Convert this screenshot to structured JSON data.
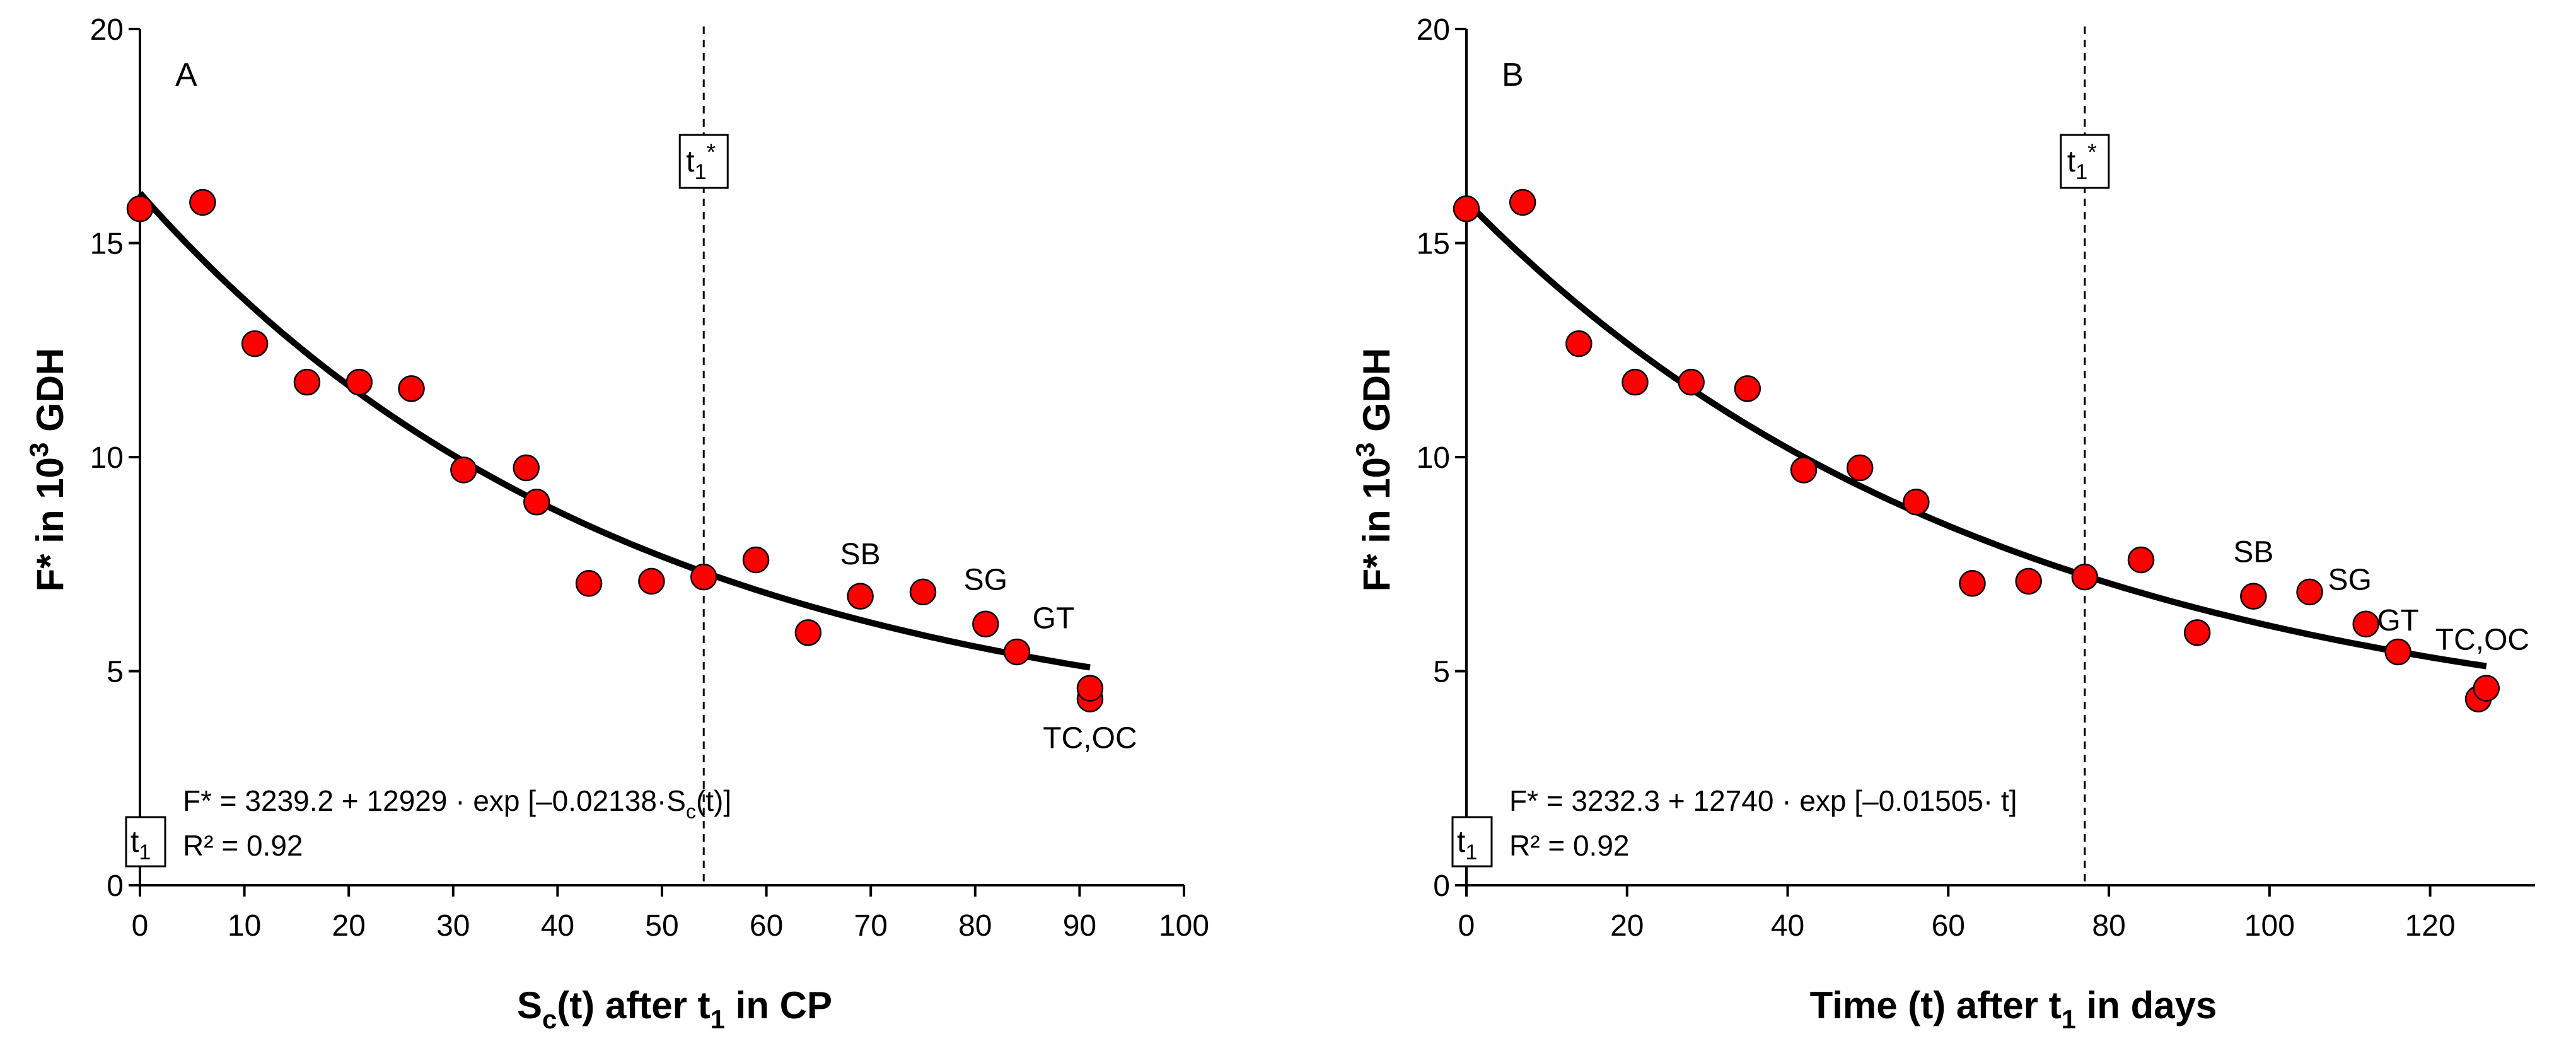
{
  "colors": {
    "point_fill": "#ff0000",
    "point_stroke": "#000000",
    "curve": "#000000"
  },
  "chart_data": [
    {
      "type": "scatter",
      "panel_label": "A",
      "xlabel": {
        "main": "S",
        "sub": "c",
        "rest": "(t) after t",
        "sub2": "1",
        "tail": " in CP"
      },
      "ylabel": {
        "main": "F* in 10",
        "sup": "3",
        "tail": " GDH"
      },
      "xlim": [
        0,
        100
      ],
      "ylim": [
        0,
        20
      ],
      "xticks": [
        0,
        10,
        20,
        30,
        40,
        50,
        60,
        70,
        80,
        90,
        100
      ],
      "yticks": [
        0,
        5,
        10,
        15,
        20
      ],
      "x": [
        0,
        6,
        11,
        16,
        21,
        26,
        31,
        37,
        38,
        43,
        49,
        54,
        59,
        64,
        69,
        75,
        81,
        84,
        91,
        91
      ],
      "y": [
        15.8,
        15.95,
        12.65,
        11.75,
        11.75,
        11.6,
        9.7,
        9.75,
        8.95,
        7.05,
        7.1,
        7.2,
        7.6,
        5.9,
        6.75,
        6.85,
        6.1,
        5.45,
        4.35,
        4.6
      ],
      "fit": {
        "a": 3239.2,
        "b": 12929,
        "k": 0.02138,
        "x_end": 91,
        "y_scale": 1000
      },
      "vline_x": 54,
      "vline_label": {
        "main": "t",
        "sub": "1",
        "sup": "*"
      },
      "t1_box": {
        "main": "t",
        "sub": "1"
      },
      "annotations": [
        {
          "text": "SB",
          "x": 69,
          "y": 7.5
        },
        {
          "text": "SG",
          "x": 81,
          "y": 6.9
        },
        {
          "text": "GT",
          "x": 87.5,
          "y": 6.0
        },
        {
          "text": "TC,OC",
          "x": 91,
          "y": 3.2
        }
      ],
      "equation": {
        "prefix": "F* = 3239.2 + 12929 · exp [–0.02138·S",
        "sub": "c",
        "suffix": "(t)]"
      },
      "r2": "R² = 0.92"
    },
    {
      "type": "scatter",
      "panel_label": "B",
      "xlabel": {
        "main": "Time (t) after t",
        "sub": "1",
        "rest": " in days"
      },
      "ylabel": {
        "main": "F* in 10",
        "sup": "3",
        "tail": " GDH"
      },
      "xlim": [
        0,
        130
      ],
      "ylim": [
        0,
        20
      ],
      "xticks": [
        0,
        20,
        40,
        60,
        80,
        100,
        120
      ],
      "yticks": [
        0,
        5,
        10,
        15,
        20
      ],
      "x": [
        0,
        7,
        14,
        21,
        28,
        35,
        42,
        49,
        56,
        63,
        70,
        77,
        84,
        91,
        98,
        105,
        112,
        116,
        126,
        127
      ],
      "y": [
        15.8,
        15.95,
        12.65,
        11.75,
        11.75,
        11.6,
        9.7,
        9.75,
        8.95,
        7.05,
        7.1,
        7.2,
        7.6,
        5.9,
        6.75,
        6.85,
        6.1,
        5.45,
        4.35,
        4.6
      ],
      "fit": {
        "a": 3232.3,
        "b": 12740,
        "k": 0.01505,
        "x_end": 127,
        "y_scale": 1000
      },
      "vline_x": 77,
      "vline_label": {
        "main": "t",
        "sub": "1",
        "sup": "*"
      },
      "t1_box": {
        "main": "t",
        "sub": "1"
      },
      "annotations": [
        {
          "text": "SB",
          "x": 98,
          "y": 7.55
        },
        {
          "text": "SG",
          "x": 110,
          "y": 6.9
        },
        {
          "text": "GT",
          "x": 116,
          "y": 5.95
        },
        {
          "text": "TC,OC",
          "x": 126.5,
          "y": 5.5
        }
      ],
      "equation": {
        "prefix": "F* = 3232.3 + 12740 · exp [–0.01505· t]",
        "sub": "",
        "suffix": ""
      },
      "r2": "R² = 0.92"
    }
  ]
}
